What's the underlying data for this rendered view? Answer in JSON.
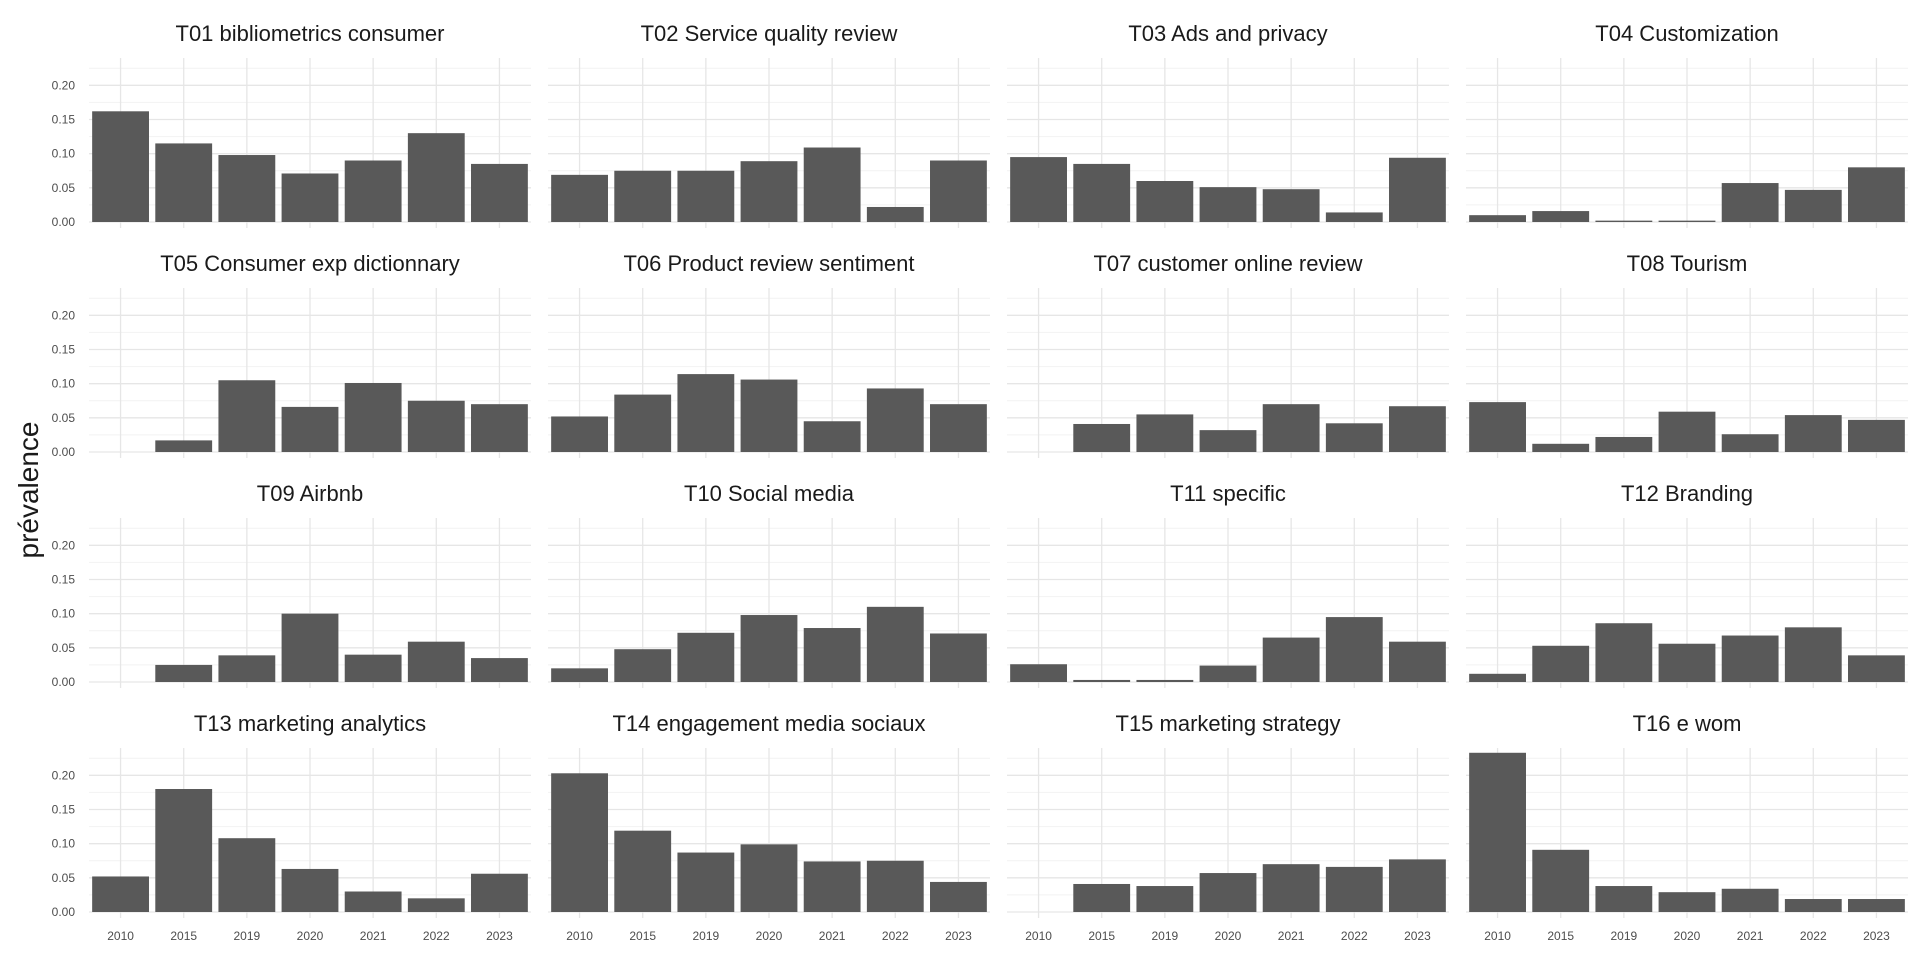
{
  "chart_data": {
    "type": "bar",
    "layout": "facet-grid-4x4",
    "ylabel": "prévalence",
    "xlabel": "",
    "ylim": [
      0,
      0.24
    ],
    "yticks": [
      0.0,
      0.05,
      0.1,
      0.15,
      0.2
    ],
    "ytick_labels": [
      "0.00",
      "0.05",
      "0.10",
      "0.15",
      "0.20"
    ],
    "grid": true,
    "bar_color": "#595959",
    "categories": [
      "2010",
      "2015",
      "2019",
      "2020",
      "2021",
      "2022",
      "2023"
    ],
    "panels": [
      {
        "title": "T01 bibliometrics consumer",
        "values": [
          0.162,
          0.115,
          0.098,
          0.071,
          0.09,
          0.13,
          0.085
        ]
      },
      {
        "title": "T02 Service quality review",
        "values": [
          0.069,
          0.075,
          0.075,
          0.089,
          0.109,
          0.022,
          0.09
        ]
      },
      {
        "title": "T03 Ads and privacy",
        "values": [
          0.095,
          0.085,
          0.06,
          0.051,
          0.048,
          0.014,
          0.094
        ]
      },
      {
        "title": "T04 Customization",
        "values": [
          0.01,
          0.016,
          0.002,
          0.002,
          0.057,
          0.047,
          0.08
        ]
      },
      {
        "title": "T05 Consumer exp dictionnary",
        "values": [
          0.0,
          0.017,
          0.105,
          0.066,
          0.101,
          0.075,
          0.07
        ]
      },
      {
        "title": "T06 Product review sentiment",
        "values": [
          0.052,
          0.084,
          0.114,
          0.106,
          0.045,
          0.093,
          0.07
        ]
      },
      {
        "title": "T07 customer online review",
        "values": [
          0.0,
          0.041,
          0.055,
          0.032,
          0.07,
          0.042,
          0.067
        ]
      },
      {
        "title": "T08 Tourism",
        "values": [
          0.073,
          0.012,
          0.022,
          0.059,
          0.026,
          0.054,
          0.047
        ]
      },
      {
        "title": "T09 Airbnb",
        "values": [
          0.0,
          0.025,
          0.039,
          0.1,
          0.04,
          0.059,
          0.035
        ]
      },
      {
        "title": "T10 Social media",
        "values": [
          0.02,
          0.048,
          0.072,
          0.098,
          0.079,
          0.11,
          0.071
        ]
      },
      {
        "title": "T11 specific",
        "values": [
          0.026,
          0.003,
          0.003,
          0.024,
          0.065,
          0.095,
          0.059
        ]
      },
      {
        "title": "T12 Branding",
        "values": [
          0.012,
          0.053,
          0.086,
          0.056,
          0.068,
          0.08,
          0.039
        ]
      },
      {
        "title": "T13 marketing analytics",
        "values": [
          0.052,
          0.18,
          0.108,
          0.063,
          0.03,
          0.02,
          0.056
        ]
      },
      {
        "title": "T14 engagement media sociaux",
        "values": [
          0.203,
          0.119,
          0.087,
          0.099,
          0.074,
          0.075,
          0.044
        ]
      },
      {
        "title": "T15 marketing strategy",
        "values": [
          0.0,
          0.041,
          0.038,
          0.057,
          0.07,
          0.066,
          0.077
        ]
      },
      {
        "title": "T16 e wom",
        "values": [
          0.233,
          0.091,
          0.038,
          0.029,
          0.034,
          0.019,
          0.019
        ]
      }
    ]
  }
}
